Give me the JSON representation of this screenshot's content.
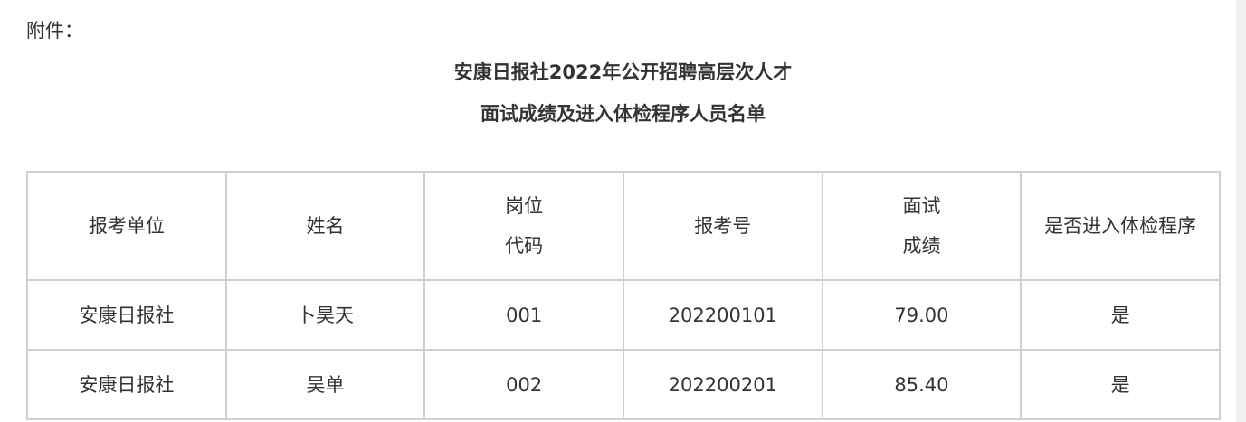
{
  "attachment_label": "附件：",
  "title_line1": "安康日报社2022年公开招聘高层次人才",
  "title_line2": "面试成绩及进入体检程序人员名单",
  "table": {
    "headers": [
      [
        "报考单位"
      ],
      [
        "姓名"
      ],
      [
        "岗位",
        "代码"
      ],
      [
        "报考号"
      ],
      [
        "面试",
        "成绩"
      ],
      [
        "是否进入体检程序"
      ]
    ],
    "rows": [
      [
        "安康日报社",
        "卜昊天",
        "001",
        "202200101",
        "79.00",
        "是"
      ],
      [
        "安康日报社",
        "吴单",
        "002",
        "202200201",
        "85.40",
        "是"
      ]
    ]
  }
}
